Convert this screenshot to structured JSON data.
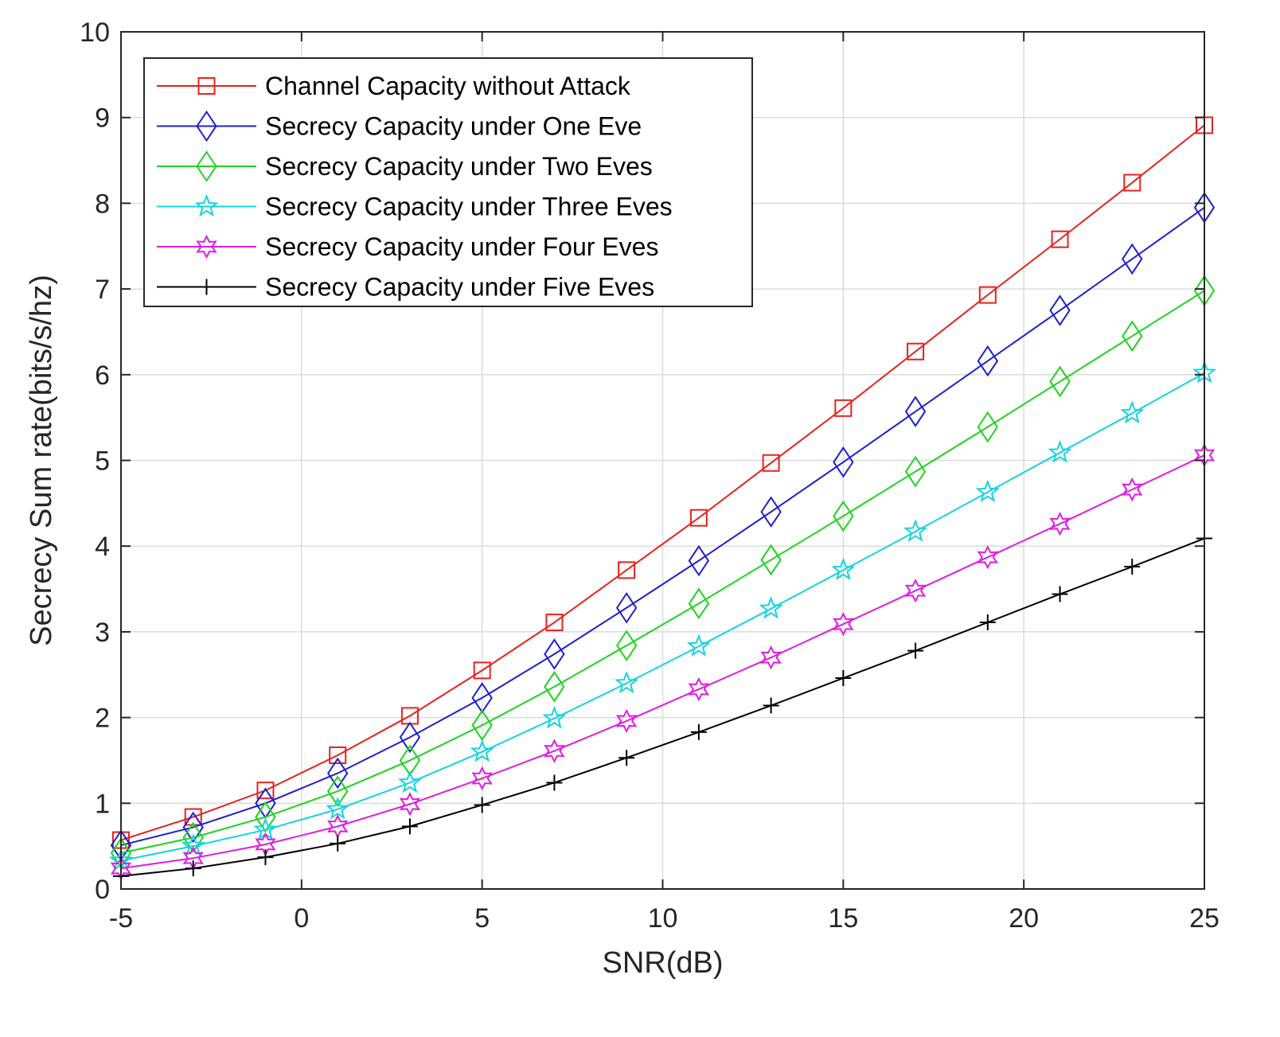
{
  "chart_data": {
    "type": "line",
    "title": "",
    "xlabel": "SNR(dB)",
    "ylabel": "Secrecy Sum rate(bits/s/hz)",
    "xlim": [
      -5,
      25
    ],
    "ylim": [
      0,
      10
    ],
    "xticks": [
      -5,
      0,
      5,
      10,
      15,
      20,
      25
    ],
    "yticks": [
      0,
      1,
      2,
      3,
      4,
      5,
      6,
      7,
      8,
      9,
      10
    ],
    "grid": true,
    "legend_position": "top-left",
    "x": [
      -5,
      -3,
      -1,
      1,
      3,
      5,
      7,
      9,
      11,
      13,
      15,
      17,
      19,
      21,
      23,
      25
    ],
    "series": [
      {
        "name": "Channel Capacity without Attack",
        "color": "#e8211c",
        "marker": "square",
        "values": [
          0.57,
          0.84,
          1.15,
          1.56,
          2.02,
          2.55,
          3.11,
          3.72,
          4.33,
          4.97,
          5.61,
          6.27,
          6.93,
          7.58,
          8.24,
          8.91
        ]
      },
      {
        "name": "Secrecy Capacity under One Eve",
        "color": "#1f1fcf",
        "marker": "diamond",
        "values": [
          0.51,
          0.72,
          1.0,
          1.35,
          1.77,
          2.23,
          2.74,
          3.28,
          3.83,
          4.4,
          4.98,
          5.57,
          6.16,
          6.75,
          7.35,
          7.95
        ]
      },
      {
        "name": "Secrecy Capacity under Two Eves",
        "color": "#1ed31e",
        "marker": "diamond",
        "values": [
          0.42,
          0.6,
          0.84,
          1.14,
          1.5,
          1.91,
          2.36,
          2.84,
          3.33,
          3.84,
          4.35,
          4.87,
          5.39,
          5.92,
          6.45,
          6.98
        ]
      },
      {
        "name": "Secrecy Capacity under Three Eves",
        "color": "#14d4de",
        "marker": "star5",
        "values": [
          0.33,
          0.5,
          0.69,
          0.93,
          1.24,
          1.6,
          1.99,
          2.4,
          2.83,
          3.27,
          3.72,
          4.17,
          4.63,
          5.09,
          5.55,
          6.02
        ]
      },
      {
        "name": "Secrecy Capacity under Four Eves",
        "color": "#e01ce0",
        "marker": "star6",
        "values": [
          0.24,
          0.36,
          0.52,
          0.73,
          0.99,
          1.29,
          1.61,
          1.96,
          2.33,
          2.7,
          3.09,
          3.48,
          3.87,
          4.26,
          4.66,
          5.06
        ]
      },
      {
        "name": "Secrecy Capacity under Five Eves",
        "color": "#000000",
        "marker": "plus",
        "values": [
          0.15,
          0.24,
          0.37,
          0.53,
          0.73,
          0.98,
          1.24,
          1.53,
          1.83,
          2.14,
          2.46,
          2.78,
          3.11,
          3.44,
          3.76,
          4.09
        ]
      }
    ]
  }
}
